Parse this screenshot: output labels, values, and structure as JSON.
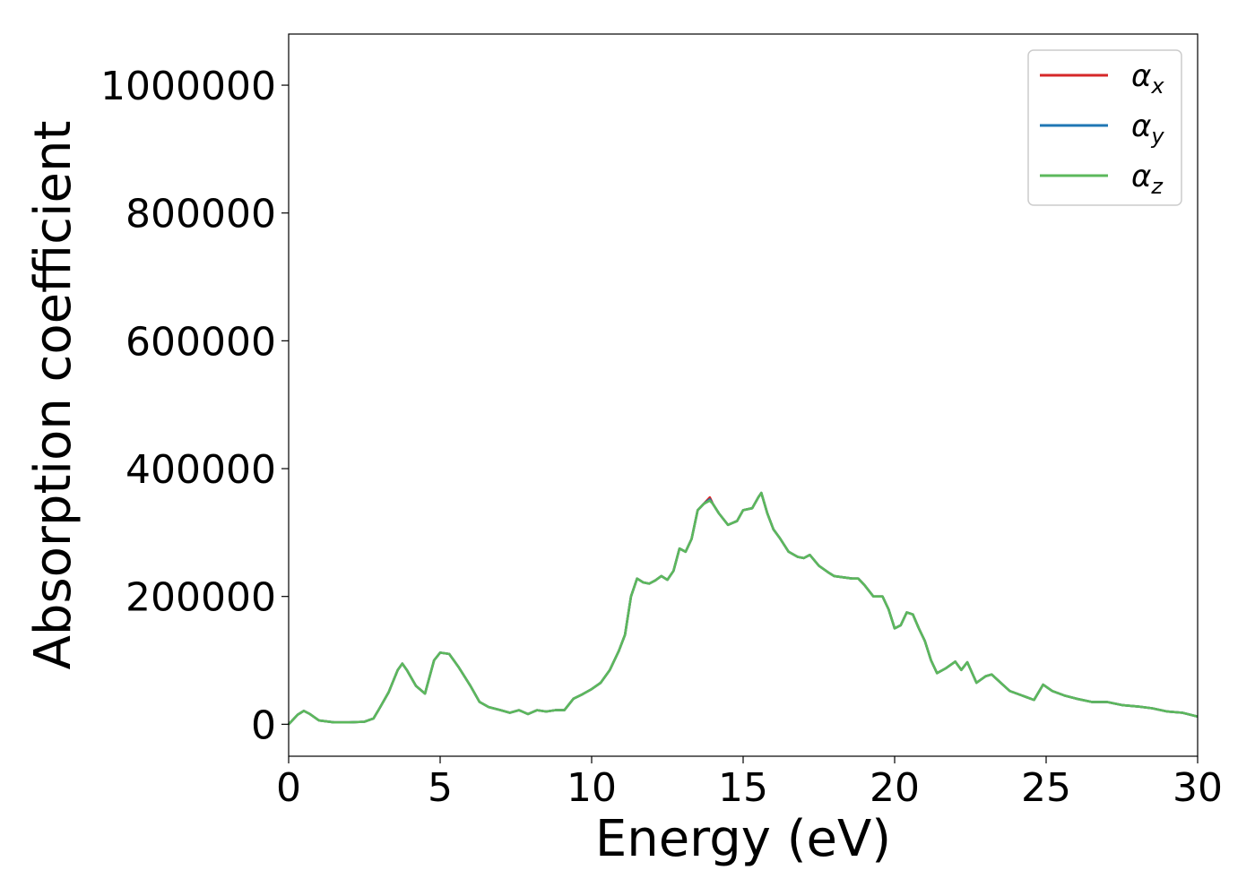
{
  "chart_data": {
    "type": "line",
    "title": "",
    "xlabel": "Energy (eV)",
    "ylabel": "Absorption coefficient",
    "xlim": [
      0,
      30
    ],
    "ylim": [
      -50000,
      1080000
    ],
    "xticks": [
      0,
      5,
      10,
      15,
      20,
      25,
      30
    ],
    "xtick_labels": [
      "0",
      "5",
      "10",
      "15",
      "20",
      "25",
      "30"
    ],
    "yticks": [
      0,
      200000,
      400000,
      600000,
      800000,
      1000000
    ],
    "ytick_labels": [
      "0",
      "200000",
      "400000",
      "600000",
      "800000",
      "1000000"
    ],
    "grid": false,
    "legend": "top-right",
    "x": [
      0,
      0.3,
      0.5,
      0.7,
      1.0,
      1.5,
      2.0,
      2.5,
      2.8,
      3.0,
      3.3,
      3.6,
      3.75,
      3.9,
      4.2,
      4.5,
      4.8,
      5.0,
      5.3,
      5.6,
      6.0,
      6.3,
      6.6,
      7.0,
      7.3,
      7.6,
      7.9,
      8.2,
      8.5,
      8.8,
      9.1,
      9.4,
      9.7,
      10.0,
      10.3,
      10.6,
      10.9,
      11.1,
      11.3,
      11.5,
      11.7,
      11.9,
      12.1,
      12.3,
      12.5,
      12.7,
      12.9,
      13.1,
      13.3,
      13.5,
      13.7,
      13.9,
      14.0,
      14.2,
      14.5,
      14.8,
      15.0,
      15.3,
      15.5,
      15.6,
      15.8,
      16.0,
      16.2,
      16.5,
      16.8,
      17.0,
      17.2,
      17.5,
      17.8,
      18.0,
      18.3,
      18.6,
      18.8,
      19.0,
      19.3,
      19.6,
      19.8,
      20.0,
      20.2,
      20.4,
      20.6,
      20.8,
      21.0,
      21.2,
      21.4,
      21.7,
      22.0,
      22.2,
      22.4,
      22.7,
      23.0,
      23.2,
      23.5,
      23.8,
      24.2,
      24.6,
      24.9,
      25.2,
      25.6,
      26.0,
      26.5,
      27.0,
      27.5,
      28.0,
      28.5,
      29.0,
      29.5,
      30.0
    ],
    "series": [
      {
        "name": "α_x",
        "label_main": "α",
        "label_sub": "x",
        "color": "#d62728",
        "values": [
          0,
          15000,
          21000,
          16000,
          6000,
          3000,
          3000,
          4000,
          9000,
          25000,
          50000,
          85000,
          95000,
          85000,
          60000,
          48000,
          100000,
          112000,
          110000,
          90000,
          60000,
          35000,
          27000,
          22000,
          18000,
          22000,
          16000,
          22000,
          20000,
          22000,
          22000,
          40000,
          47000,
          55000,
          65000,
          85000,
          115000,
          140000,
          200000,
          228000,
          222000,
          220000,
          225000,
          232000,
          226000,
          240000,
          275000,
          270000,
          290000,
          335000,
          345000,
          355000,
          345000,
          330000,
          312000,
          318000,
          335000,
          338000,
          355000,
          362000,
          330000,
          305000,
          292000,
          270000,
          262000,
          260000,
          265000,
          248000,
          238000,
          232000,
          230000,
          228000,
          228000,
          218000,
          200000,
          200000,
          180000,
          150000,
          155000,
          175000,
          172000,
          150000,
          130000,
          100000,
          80000,
          88000,
          98000,
          85000,
          97000,
          65000,
          75000,
          78000,
          65000,
          52000,
          45000,
          38000,
          62000,
          52000,
          45000,
          40000,
          35000,
          35000,
          30000,
          28000,
          25000,
          20000,
          18000,
          12000
        ]
      },
      {
        "name": "α_y",
        "label_main": "α",
        "label_sub": "y",
        "color": "#1f77b4",
        "values": [
          0,
          15000,
          21000,
          16000,
          6000,
          3000,
          3000,
          4000,
          9000,
          25000,
          50000,
          85000,
          95000,
          85000,
          60000,
          48000,
          100000,
          112000,
          110000,
          90000,
          60000,
          35000,
          27000,
          22000,
          18000,
          22000,
          16000,
          22000,
          20000,
          22000,
          22000,
          40000,
          47000,
          55000,
          65000,
          85000,
          115000,
          140000,
          200000,
          228000,
          222000,
          220000,
          225000,
          232000,
          226000,
          240000,
          275000,
          270000,
          290000,
          335000,
          345000,
          352000,
          345000,
          330000,
          312000,
          318000,
          335000,
          338000,
          355000,
          362000,
          330000,
          305000,
          292000,
          270000,
          262000,
          260000,
          265000,
          248000,
          238000,
          232000,
          230000,
          228000,
          228000,
          218000,
          200000,
          200000,
          180000,
          150000,
          155000,
          175000,
          172000,
          150000,
          130000,
          100000,
          80000,
          88000,
          98000,
          85000,
          97000,
          65000,
          75000,
          78000,
          65000,
          52000,
          45000,
          38000,
          62000,
          52000,
          45000,
          40000,
          35000,
          35000,
          30000,
          28000,
          25000,
          20000,
          18000,
          12000
        ]
      },
      {
        "name": "α_z",
        "label_main": "α",
        "label_sub": "z",
        "color": "#5cb85c",
        "values": [
          0,
          15000,
          21000,
          16000,
          6000,
          3000,
          3000,
          4000,
          9000,
          25000,
          50000,
          85000,
          95000,
          85000,
          60000,
          48000,
          100000,
          112000,
          110000,
          90000,
          60000,
          35000,
          27000,
          22000,
          18000,
          22000,
          16000,
          22000,
          20000,
          22000,
          22000,
          40000,
          47000,
          55000,
          65000,
          85000,
          115000,
          140000,
          200000,
          228000,
          222000,
          220000,
          225000,
          232000,
          226000,
          240000,
          275000,
          270000,
          290000,
          335000,
          345000,
          350000,
          345000,
          330000,
          312000,
          318000,
          335000,
          338000,
          355000,
          362000,
          330000,
          305000,
          292000,
          270000,
          262000,
          260000,
          265000,
          248000,
          238000,
          232000,
          230000,
          228000,
          228000,
          218000,
          200000,
          200000,
          180000,
          150000,
          155000,
          175000,
          172000,
          150000,
          130000,
          100000,
          80000,
          88000,
          98000,
          85000,
          97000,
          65000,
          75000,
          78000,
          65000,
          52000,
          45000,
          38000,
          62000,
          52000,
          45000,
          40000,
          35000,
          35000,
          30000,
          28000,
          25000,
          20000,
          18000,
          12000
        ]
      }
    ]
  }
}
